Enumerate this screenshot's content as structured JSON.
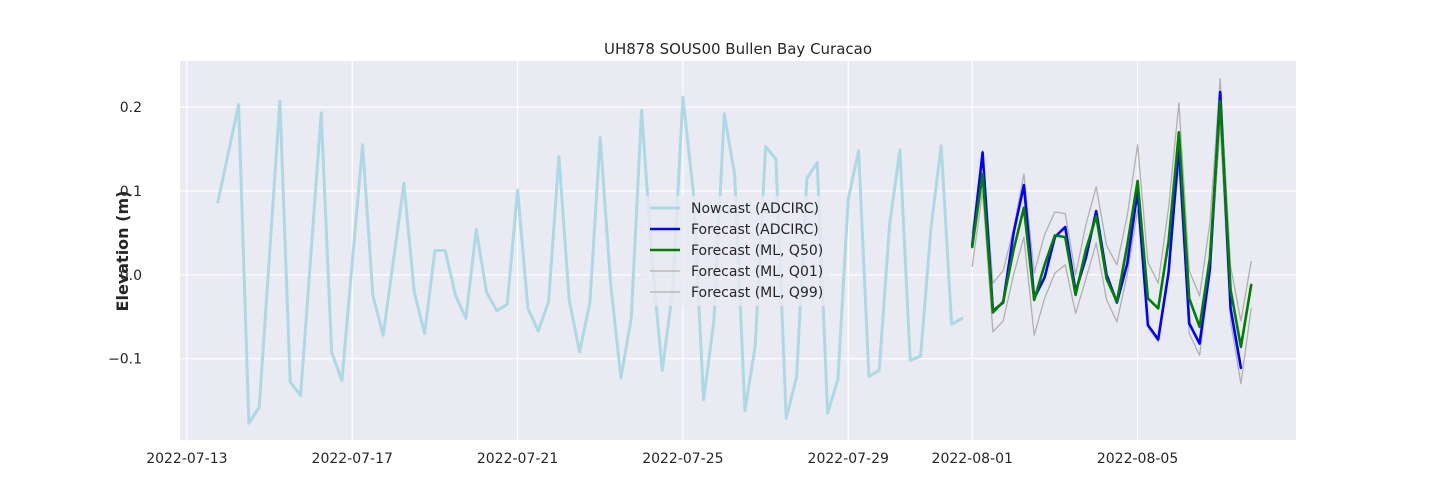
{
  "chart_data": {
    "type": "line",
    "title": "UH878 SOUS00 Bullen Bay Curacao",
    "xlabel": "",
    "ylabel": "Elevation (m)",
    "x_type": "date",
    "xlim": [
      "2022-07-12T20:00",
      "2022-08-08T20:00"
    ],
    "ylim": [
      -0.197,
      0.255
    ],
    "x_ticks": [
      "2022-07-13",
      "2022-07-17",
      "2022-07-21",
      "2022-07-25",
      "2022-07-29",
      "2022-08-01",
      "2022-08-05"
    ],
    "y_ticks": [
      -0.1,
      0.0,
      0.1,
      0.2
    ],
    "y_tick_labels": [
      "−0.1",
      "0.0",
      "0.1",
      "0.2"
    ],
    "grid": true,
    "legend_position": "center",
    "series": [
      {
        "name": "Nowcast (ADCIRC)",
        "color": "#add8e6",
        "width": 3,
        "points": [
          [
            "2022-07-13T18:00",
            0.087
          ],
          [
            "2022-07-14T06:00",
            0.203
          ],
          [
            "2022-07-14T12:00",
            -0.177
          ],
          [
            "2022-07-14T18:00",
            -0.158
          ],
          [
            "2022-07-15T06:00",
            0.207
          ],
          [
            "2022-07-15T12:00",
            -0.128
          ],
          [
            "2022-07-15T18:00",
            -0.144
          ],
          [
            "2022-07-16T06:00",
            0.193
          ],
          [
            "2022-07-16T12:00",
            -0.092
          ],
          [
            "2022-07-16T18:00",
            -0.126
          ],
          [
            "2022-07-17T06:00",
            0.155
          ],
          [
            "2022-07-17T12:00",
            -0.025
          ],
          [
            "2022-07-17T18:00",
            -0.072
          ],
          [
            "2022-07-18T06:00",
            0.109
          ],
          [
            "2022-07-18T12:00",
            -0.02
          ],
          [
            "2022-07-18T18:00",
            -0.07
          ],
          [
            "2022-07-19T00:00",
            0.029
          ],
          [
            "2022-07-19T06:00",
            0.029
          ],
          [
            "2022-07-19T12:00",
            -0.025
          ],
          [
            "2022-07-19T18:00",
            -0.052
          ],
          [
            "2022-07-20T00:00",
            0.054
          ],
          [
            "2022-07-20T06:00",
            -0.021
          ],
          [
            "2022-07-20T12:00",
            -0.043
          ],
          [
            "2022-07-20T18:00",
            -0.035
          ],
          [
            "2022-07-21T00:00",
            0.101
          ],
          [
            "2022-07-21T06:00",
            -0.04
          ],
          [
            "2022-07-21T12:00",
            -0.067
          ],
          [
            "2022-07-21T18:00",
            -0.032
          ],
          [
            "2022-07-22T00:00",
            0.141
          ],
          [
            "2022-07-22T06:00",
            -0.03
          ],
          [
            "2022-07-22T12:00",
            -0.092
          ],
          [
            "2022-07-22T18:00",
            -0.033
          ],
          [
            "2022-07-23T00:00",
            0.164
          ],
          [
            "2022-07-23T06:00",
            -0.01
          ],
          [
            "2022-07-23T12:00",
            -0.123
          ],
          [
            "2022-07-23T18:00",
            -0.052
          ],
          [
            "2022-07-24T00:00",
            0.196
          ],
          [
            "2022-07-24T06:00",
            0.02
          ],
          [
            "2022-07-24T12:00",
            -0.114
          ],
          [
            "2022-07-24T18:00",
            -0.02
          ],
          [
            "2022-07-25T00:00",
            0.212
          ],
          [
            "2022-07-25T06:00",
            0.1
          ],
          [
            "2022-07-25T12:00",
            -0.149
          ],
          [
            "2022-07-25T18:00",
            -0.055
          ],
          [
            "2022-07-26T00:00",
            0.192
          ],
          [
            "2022-07-26T06:00",
            0.12
          ],
          [
            "2022-07-26T12:00",
            -0.162
          ],
          [
            "2022-07-26T18:00",
            -0.085
          ],
          [
            "2022-07-27T00:00",
            0.153
          ],
          [
            "2022-07-27T06:00",
            0.138
          ],
          [
            "2022-07-27T12:00",
            -0.171
          ],
          [
            "2022-07-27T18:00",
            -0.122
          ],
          [
            "2022-07-28T00:00",
            0.115
          ],
          [
            "2022-07-28T06:00",
            0.134
          ],
          [
            "2022-07-28T12:00",
            -0.165
          ],
          [
            "2022-07-28T18:00",
            -0.125
          ],
          [
            "2022-07-29T00:00",
            0.09
          ],
          [
            "2022-07-29T06:00",
            0.148
          ],
          [
            "2022-07-29T12:00",
            -0.121
          ],
          [
            "2022-07-29T18:00",
            -0.114
          ],
          [
            "2022-07-30T00:00",
            0.06
          ],
          [
            "2022-07-30T06:00",
            0.149
          ],
          [
            "2022-07-30T12:00",
            -0.102
          ],
          [
            "2022-07-30T18:00",
            -0.097
          ],
          [
            "2022-07-31T00:00",
            0.055
          ],
          [
            "2022-07-31T06:00",
            0.154
          ],
          [
            "2022-07-31T12:00",
            -0.059
          ],
          [
            "2022-07-31T18:00",
            -0.052
          ]
        ]
      },
      {
        "name": "Forecast (ADCIRC)",
        "color": "#0000ff",
        "width": 2.6,
        "points": [
          [
            "2022-08-01T00:00",
            0.035
          ],
          [
            "2022-08-01T06:00",
            0.146
          ],
          [
            "2022-08-01T12:00",
            -0.043
          ],
          [
            "2022-08-01T18:00",
            -0.033
          ],
          [
            "2022-08-02T00:00",
            0.05
          ],
          [
            "2022-08-02T06:00",
            0.107
          ],
          [
            "2022-08-02T12:00",
            -0.028
          ],
          [
            "2022-08-02T18:00",
            -0.003
          ],
          [
            "2022-08-03T00:00",
            0.045
          ],
          [
            "2022-08-03T06:00",
            0.057
          ],
          [
            "2022-08-03T12:00",
            -0.02
          ],
          [
            "2022-08-03T18:00",
            0.02
          ],
          [
            "2022-08-04T00:00",
            0.076
          ],
          [
            "2022-08-04T06:00",
            0.0
          ],
          [
            "2022-08-04T12:00",
            -0.033
          ],
          [
            "2022-08-04T18:00",
            0.013
          ],
          [
            "2022-08-05T00:00",
            0.1
          ],
          [
            "2022-08-05T06:00",
            -0.06
          ],
          [
            "2022-08-05T12:00",
            -0.077
          ],
          [
            "2022-08-05T18:00",
            0.003
          ],
          [
            "2022-08-06T00:00",
            0.153
          ],
          [
            "2022-08-06T06:00",
            -0.058
          ],
          [
            "2022-08-06T12:00",
            -0.082
          ],
          [
            "2022-08-06T18:00",
            0.007
          ],
          [
            "2022-08-07T00:00",
            0.218
          ],
          [
            "2022-08-07T06:00",
            -0.04
          ],
          [
            "2022-08-07T12:00",
            -0.111
          ]
        ]
      },
      {
        "name": "Forecast (ML, Q50)",
        "color": "#008000",
        "width": 2.6,
        "points": [
          [
            "2022-08-01T00:00",
            0.033
          ],
          [
            "2022-08-01T06:00",
            0.12
          ],
          [
            "2022-08-01T12:00",
            -0.045
          ],
          [
            "2022-08-01T18:00",
            -0.032
          ],
          [
            "2022-08-02T00:00",
            0.03
          ],
          [
            "2022-08-02T06:00",
            0.08
          ],
          [
            "2022-08-02T12:00",
            -0.03
          ],
          [
            "2022-08-02T18:00",
            0.012
          ],
          [
            "2022-08-03T00:00",
            0.047
          ],
          [
            "2022-08-03T06:00",
            0.045
          ],
          [
            "2022-08-03T12:00",
            -0.024
          ],
          [
            "2022-08-03T18:00",
            0.03
          ],
          [
            "2022-08-04T00:00",
            0.07
          ],
          [
            "2022-08-04T06:00",
            -0.005
          ],
          [
            "2022-08-04T12:00",
            -0.032
          ],
          [
            "2022-08-04T18:00",
            0.035
          ],
          [
            "2022-08-05T00:00",
            0.112
          ],
          [
            "2022-08-05T06:00",
            -0.028
          ],
          [
            "2022-08-05T12:00",
            -0.04
          ],
          [
            "2022-08-05T18:00",
            0.04
          ],
          [
            "2022-08-06T00:00",
            0.17
          ],
          [
            "2022-08-06T06:00",
            -0.028
          ],
          [
            "2022-08-06T12:00",
            -0.062
          ],
          [
            "2022-08-06T18:00",
            0.02
          ],
          [
            "2022-08-07T00:00",
            0.207
          ],
          [
            "2022-08-07T06:00",
            -0.018
          ],
          [
            "2022-08-07T12:00",
            -0.086
          ],
          [
            "2022-08-07T18:00",
            -0.012
          ]
        ]
      },
      {
        "name": "Forecast (ML, Q01)",
        "color": "#b0b0b0",
        "width": 1.3,
        "points": [
          [
            "2022-08-01T00:00",
            0.01
          ],
          [
            "2022-08-01T06:00",
            0.1
          ],
          [
            "2022-08-01T12:00",
            -0.068
          ],
          [
            "2022-08-01T18:00",
            -0.055
          ],
          [
            "2022-08-02T00:00",
            0.0
          ],
          [
            "2022-08-02T06:00",
            0.045
          ],
          [
            "2022-08-02T12:00",
            -0.072
          ],
          [
            "2022-08-02T18:00",
            -0.028
          ],
          [
            "2022-08-03T00:00",
            0.002
          ],
          [
            "2022-08-03T06:00",
            0.012
          ],
          [
            "2022-08-03T12:00",
            -0.046
          ],
          [
            "2022-08-03T18:00",
            -0.005
          ],
          [
            "2022-08-04T00:00",
            0.038
          ],
          [
            "2022-08-04T06:00",
            -0.03
          ],
          [
            "2022-08-04T12:00",
            -0.056
          ],
          [
            "2022-08-04T18:00",
            0.0
          ],
          [
            "2022-08-05T00:00",
            0.078
          ],
          [
            "2022-08-05T06:00",
            -0.062
          ],
          [
            "2022-08-05T12:00",
            -0.08
          ],
          [
            "2022-08-05T18:00",
            0.008
          ],
          [
            "2022-08-06T00:00",
            0.13
          ],
          [
            "2022-08-06T06:00",
            -0.07
          ],
          [
            "2022-08-06T12:00",
            -0.096
          ],
          [
            "2022-08-06T18:00",
            0.0
          ],
          [
            "2022-08-07T00:00",
            0.18
          ],
          [
            "2022-08-07T06:00",
            -0.055
          ],
          [
            "2022-08-07T12:00",
            -0.13
          ],
          [
            "2022-08-07T18:00",
            -0.04
          ]
        ]
      },
      {
        "name": "Forecast (ML, Q99)",
        "color": "#b0b0b0",
        "width": 1.3,
        "points": [
          [
            "2022-08-01T00:00",
            0.05
          ],
          [
            "2022-08-01T06:00",
            0.148
          ],
          [
            "2022-08-01T12:00",
            -0.01
          ],
          [
            "2022-08-01T18:00",
            0.005
          ],
          [
            "2022-08-02T00:00",
            0.055
          ],
          [
            "2022-08-02T06:00",
            0.12
          ],
          [
            "2022-08-02T12:00",
            0.002
          ],
          [
            "2022-08-02T18:00",
            0.048
          ],
          [
            "2022-08-03T00:00",
            0.075
          ],
          [
            "2022-08-03T06:00",
            0.073
          ],
          [
            "2022-08-03T12:00",
            0.0
          ],
          [
            "2022-08-03T18:00",
            0.06
          ],
          [
            "2022-08-04T00:00",
            0.105
          ],
          [
            "2022-08-04T06:00",
            0.035
          ],
          [
            "2022-08-04T12:00",
            0.012
          ],
          [
            "2022-08-04T18:00",
            0.07
          ],
          [
            "2022-08-05T00:00",
            0.155
          ],
          [
            "2022-08-05T06:00",
            0.015
          ],
          [
            "2022-08-05T12:00",
            -0.01
          ],
          [
            "2022-08-05T18:00",
            0.08
          ],
          [
            "2022-08-06T00:00",
            0.205
          ],
          [
            "2022-08-06T06:00",
            0.005
          ],
          [
            "2022-08-06T12:00",
            -0.025
          ],
          [
            "2022-08-06T18:00",
            0.062
          ],
          [
            "2022-08-07T00:00",
            0.234
          ],
          [
            "2022-08-07T06:00",
            0.01
          ],
          [
            "2022-08-07T12:00",
            -0.055
          ],
          [
            "2022-08-07T18:00",
            0.016
          ]
        ]
      }
    ]
  }
}
